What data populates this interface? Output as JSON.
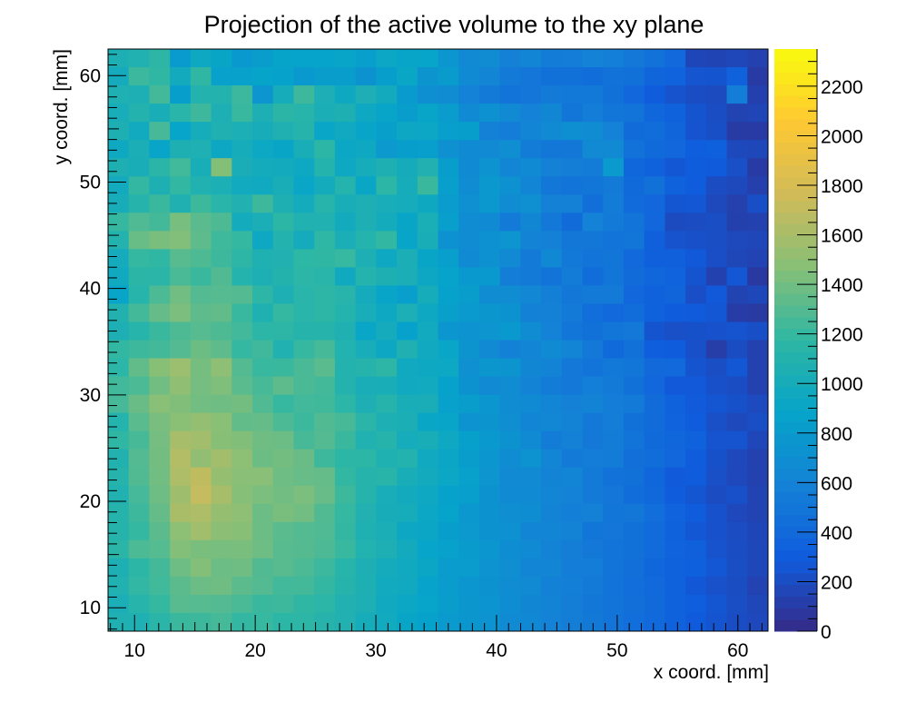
{
  "chart_data": {
    "type": "heatmap",
    "title": "Projection of the active volume to the xy plane",
    "xlabel": "x coord. [mm]",
    "ylabel": "y coord. [mm]",
    "xlim": [
      7.8,
      62.5
    ],
    "ylim": [
      7.8,
      62.5
    ],
    "x_ticks": [
      10,
      20,
      30,
      40,
      50,
      60
    ],
    "y_ticks": [
      10,
      20,
      30,
      40,
      50,
      60
    ],
    "z_range": [
      0,
      2350
    ],
    "z_ticks": [
      0,
      200,
      400,
      600,
      800,
      1000,
      1200,
      1400,
      1600,
      1800,
      2000,
      2200
    ],
    "palette": [
      "#352a87",
      "#0f5cdd",
      "#1481d6",
      "#06a4ca",
      "#2eb7a4",
      "#87bf77",
      "#d1bb59",
      "#fec832",
      "#f9fb0e"
    ],
    "grid": false,
    "legend": "colorbar-right",
    "nx": 32,
    "ny": 32,
    "values": [
      [
        1054,
        1076,
        1166,
        808,
        946,
        902,
        789,
        823,
        885,
        879,
        884,
        894,
        839,
        924,
        894,
        891,
        764,
        652,
        676,
        582,
        617,
        546,
        558,
        593,
        575,
        515,
        466,
        397,
        167,
        155,
        171,
        140
      ],
      [
        990,
        1217,
        1180,
        976,
        1180,
        854,
        855,
        888,
        863,
        787,
        825,
        825,
        733,
        830,
        913,
        751,
        804,
        671,
        630,
        534,
        500,
        449,
        449,
        431,
        470,
        459,
        362,
        350,
        251,
        245,
        335,
        99
      ],
      [
        1062,
        1048,
        1245,
        834,
        1100,
        1098,
        1218,
        758,
        1008,
        1223,
        1047,
        949,
        1047,
        981,
        808,
        703,
        680,
        593,
        540,
        486,
        500,
        534,
        522,
        523,
        451,
        385,
        305,
        238,
        207,
        190,
        558,
        132
      ],
      [
        1016,
        1101,
        1018,
        1137,
        1225,
        1051,
        1207,
        1050,
        1149,
        1125,
        1037,
        1056,
        938,
        893,
        822,
        899,
        818,
        663,
        718,
        653,
        592,
        642,
        497,
        555,
        494,
        481,
        376,
        335,
        247,
        208,
        146,
        159
      ],
      [
        1058,
        967,
        1256,
        890,
        1009,
        1070,
        1046,
        1012,
        1073,
        1119,
        906,
        952,
        899,
        849,
        930,
        925,
        837,
        830,
        579,
        557,
        617,
        659,
        709,
        677,
        595,
        422,
        426,
        366,
        241,
        215,
        98,
        98
      ],
      [
        947,
        1035,
        899,
        1056,
        1060,
        932,
        1003,
        936,
        901,
        1018,
        1163,
        928,
        945,
        785,
        835,
        841,
        711,
        673,
        659,
        699,
        550,
        509,
        506,
        651,
        657,
        465,
        403,
        384,
        312,
        322,
        181,
        174
      ],
      [
        1058,
        1019,
        1144,
        1237,
        1020,
        1460,
        1025,
        984,
        980,
        946,
        1108,
        944,
        1008,
        1058,
        994,
        1085,
        831,
        663,
        743,
        627,
        662,
        586,
        564,
        545,
        795,
        380,
        339,
        262,
        301,
        287,
        218,
        102
      ],
      [
        977,
        1190,
        1056,
        1185,
        1076,
        1044,
        969,
        964,
        1022,
        908,
        986,
        1106,
        913,
        1159,
        1002,
        1211,
        839,
        683,
        777,
        722,
        628,
        505,
        476,
        494,
        533,
        404,
        456,
        345,
        301,
        201,
        183,
        127
      ],
      [
        1011,
        1113,
        1214,
        1071,
        1220,
        1138,
        1084,
        1226,
        1059,
        985,
        1121,
        1020,
        1051,
        1014,
        1000,
        948,
        818,
        716,
        778,
        681,
        716,
        591,
        583,
        441,
        549,
        415,
        382,
        254,
        266,
        181,
        134,
        215
      ],
      [
        1202,
        1284,
        1247,
        1420,
        1316,
        1281,
        985,
        1036,
        1159,
        1078,
        1083,
        977,
        1053,
        983,
        901,
        1029,
        841,
        683,
        666,
        538,
        642,
        516,
        418,
        592,
        532,
        488,
        382,
        196,
        199,
        210,
        129,
        136
      ],
      [
        1101,
        1368,
        1426,
        1451,
        1330,
        1232,
        1194,
        940,
        1096,
        989,
        1174,
        1034,
        1106,
        1189,
        899,
        1018,
        723,
        684,
        725,
        759,
        611,
        577,
        509,
        505,
        477,
        493,
        326,
        240,
        224,
        209,
        182,
        173
      ],
      [
        988,
        1195,
        1178,
        1313,
        1282,
        1227,
        1165,
        1068,
        1086,
        1168,
        1179,
        1204,
        1053,
        943,
        1033,
        904,
        837,
        664,
        722,
        652,
        537,
        649,
        521,
        476,
        490,
        397,
        328,
        326,
        277,
        214,
        168,
        149
      ],
      [
        955,
        1149,
        1143,
        1268,
        1213,
        1290,
        1106,
        1048,
        1104,
        1155,
        1139,
        964,
        1106,
        1056,
        1033,
        931,
        882,
        790,
        789,
        563,
        541,
        483,
        548,
        427,
        493,
        417,
        378,
        347,
        247,
        137,
        263,
        89
      ],
      [
        894,
        1126,
        1275,
        1395,
        1299,
        1308,
        1298,
        1166,
        1051,
        1137,
        1167,
        1128,
        993,
        899,
        843,
        1006,
        865,
        825,
        682,
        679,
        635,
        573,
        508,
        538,
        543,
        385,
        331,
        364,
        214,
        277,
        146,
        175
      ],
      [
        1087,
        1245,
        1355,
        1430,
        1333,
        1342,
        1208,
        1068,
        1196,
        1137,
        1167,
        1108,
        1016,
        937,
        1046,
        939,
        845,
        797,
        775,
        729,
        598,
        586,
        530,
        434,
        395,
        425,
        338,
        292,
        287,
        266,
        106,
        95
      ],
      [
        1051,
        1122,
        1212,
        1282,
        1308,
        1278,
        1239,
        1152,
        1167,
        1110,
        1119,
        1072,
        906,
        993,
        866,
        967,
        761,
        740,
        755,
        791,
        678,
        595,
        494,
        454,
        491,
        515,
        247,
        217,
        229,
        235,
        244,
        216
      ],
      [
        1186,
        1228,
        1247,
        1300,
        1381,
        1334,
        1197,
        1230,
        1079,
        1201,
        1253,
        1090,
        1017,
        934,
        1071,
        955,
        905,
        751,
        651,
        598,
        628,
        671,
        625,
        520,
        408,
        449,
        306,
        292,
        225,
        111,
        203,
        136
      ],
      [
        1154,
        1348,
        1473,
        1549,
        1411,
        1495,
        1301,
        1207,
        1214,
        1266,
        1321,
        1095,
        1117,
        1165,
        962,
        946,
        936,
        717,
        775,
        749,
        642,
        616,
        513,
        477,
        521,
        495,
        399,
        397,
        247,
        213,
        262,
        138
      ],
      [
        1238,
        1271,
        1399,
        1504,
        1408,
        1444,
        1316,
        1259,
        1335,
        1267,
        1246,
        1100,
        1028,
        1024,
        960,
        969,
        868,
        730,
        660,
        676,
        610,
        548,
        513,
        570,
        528,
        451,
        382,
        275,
        279,
        226,
        208,
        139
      ],
      [
        1256,
        1371,
        1478,
        1446,
        1401,
        1392,
        1405,
        1287,
        1200,
        1242,
        1233,
        1153,
        1052,
        1110,
        1020,
        1027,
        856,
        824,
        761,
        677,
        671,
        624,
        591,
        611,
        553,
        528,
        421,
        335,
        282,
        253,
        230,
        187
      ],
      [
        1108,
        1321,
        1422,
        1480,
        1519,
        1482,
        1345,
        1355,
        1274,
        1220,
        1295,
        1258,
        1144,
        1053,
        1041,
        911,
        895,
        737,
        749,
        696,
        631,
        634,
        609,
        518,
        554,
        456,
        421,
        349,
        292,
        220,
        182,
        210
      ],
      [
        1183,
        1261,
        1408,
        1599,
        1577,
        1468,
        1446,
        1392,
        1377,
        1261,
        1302,
        1214,
        1082,
        1110,
        999,
        1018,
        938,
        850,
        787,
        728,
        662,
        549,
        584,
        520,
        545,
        482,
        408,
        376,
        339,
        244,
        242,
        171
      ],
      [
        1089,
        1298,
        1405,
        1641,
        1507,
        1577,
        1491,
        1381,
        1404,
        1372,
        1223,
        1156,
        1161,
        1065,
        1097,
        963,
        917,
        824,
        764,
        681,
        738,
        625,
        535,
        554,
        545,
        445,
        427,
        382,
        299,
        230,
        178,
        137
      ],
      [
        1110,
        1294,
        1398,
        1622,
        1692,
        1530,
        1477,
        1477,
        1387,
        1366,
        1361,
        1188,
        1116,
        1134,
        1023,
        980,
        922,
        852,
        752,
        656,
        659,
        611,
        633,
        536,
        465,
        455,
        370,
        282,
        294,
        218,
        179,
        141
      ],
      [
        1083,
        1250,
        1384,
        1562,
        1711,
        1598,
        1467,
        1429,
        1397,
        1429,
        1363,
        1222,
        1113,
        1017,
        975,
        946,
        868,
        840,
        728,
        667,
        670,
        626,
        597,
        543,
        504,
        432,
        387,
        292,
        252,
        197,
        225,
        147
      ],
      [
        1118,
        1226,
        1359,
        1605,
        1619,
        1527,
        1498,
        1378,
        1425,
        1400,
        1290,
        1194,
        1084,
        1010,
        1003,
        925,
        879,
        778,
        728,
        696,
        689,
        610,
        573,
        585,
        495,
        507,
        436,
        350,
        297,
        231,
        179,
        148
      ],
      [
        1111,
        1197,
        1323,
        1492,
        1573,
        1488,
        1472,
        1377,
        1317,
        1301,
        1284,
        1190,
        1068,
        1037,
        933,
        918,
        829,
        786,
        734,
        718,
        630,
        617,
        608,
        495,
        502,
        457,
        413,
        341,
        265,
        231,
        202,
        167
      ],
      [
        1150,
        1274,
        1305,
        1456,
        1427,
        1420,
        1426,
        1382,
        1315,
        1303,
        1276,
        1209,
        1090,
        1053,
        975,
        889,
        855,
        804,
        767,
        686,
        661,
        608,
        563,
        519,
        488,
        457,
        413,
        352,
        324,
        238,
        208,
        174
      ],
      [
        1054,
        1162,
        1247,
        1386,
        1456,
        1377,
        1389,
        1291,
        1309,
        1271,
        1219,
        1124,
        1049,
        988,
        957,
        915,
        818,
        811,
        740,
        698,
        630,
        630,
        557,
        553,
        488,
        448,
        376,
        335,
        322,
        263,
        213,
        175
      ],
      [
        1077,
        1184,
        1237,
        1328,
        1379,
        1389,
        1327,
        1297,
        1240,
        1243,
        1191,
        1116,
        1057,
        969,
        955,
        870,
        817,
        767,
        727,
        681,
        659,
        598,
        572,
        533,
        475,
        439,
        398,
        335,
        270,
        227,
        203,
        145
      ],
      [
        1033,
        1123,
        1198,
        1311,
        1308,
        1301,
        1265,
        1213,
        1226,
        1180,
        1153,
        1085,
        1048,
        961,
        928,
        889,
        823,
        773,
        746,
        686,
        642,
        615,
        560,
        511,
        482,
        447,
        401,
        339,
        307,
        252,
        212,
        168
      ],
      [
        1073,
        1061,
        1147,
        1213,
        1223,
        1254,
        1190,
        1204,
        1160,
        1164,
        1120,
        1085,
        1002,
        973,
        903,
        868,
        801,
        774,
        738,
        670,
        643,
        594,
        560,
        527,
        475,
        435,
        394,
        342,
        287,
        246,
        205,
        176
      ]
    ],
    "empty_bins_color": "#ffffff"
  }
}
